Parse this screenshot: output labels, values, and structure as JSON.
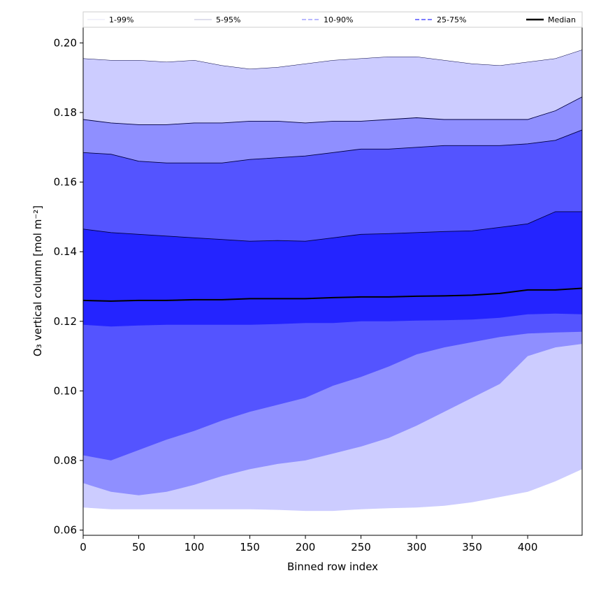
{
  "chart_data": {
    "type": "area",
    "xlabel": "Binned row index",
    "ylabel": "O₃ vertical column [mol m⁻²]",
    "xlim": [
      0,
      449
    ],
    "ylim": [
      0.0585,
      0.2045
    ],
    "x_ticks": [
      0,
      50,
      100,
      150,
      200,
      250,
      300,
      350,
      400
    ],
    "y_ticks": [
      0.06,
      0.08,
      0.1,
      0.12,
      0.14,
      0.16,
      0.18,
      0.2
    ],
    "x_tick_labels": [
      "0",
      "50",
      "100",
      "150",
      "200",
      "250",
      "300",
      "350",
      "400"
    ],
    "y_tick_labels": [
      "0.06",
      "0.08",
      "0.10",
      "0.12",
      "0.14",
      "0.16",
      "0.18",
      "0.20"
    ],
    "grid": false,
    "legend_placement": "top",
    "colors": {
      "band_1_99": "#ccccff",
      "band_5_95": "#8f8fff",
      "band_10_90": "#5454ff",
      "band_25_75": "#2424ff",
      "median": "#000000"
    },
    "x": [
      0,
      25,
      50,
      75,
      100,
      125,
      150,
      175,
      200,
      225,
      250,
      275,
      300,
      325,
      350,
      375,
      400,
      425,
      449
    ],
    "bands": [
      {
        "name": "1-99%",
        "lower": [
          0.0665,
          0.066,
          0.066,
          0.066,
          0.066,
          0.066,
          0.066,
          0.0658,
          0.0655,
          0.0655,
          0.066,
          0.0663,
          0.0665,
          0.067,
          0.068,
          0.0695,
          0.071,
          0.074,
          0.0775
        ],
        "upper": [
          0.1955,
          0.195,
          0.195,
          0.1945,
          0.195,
          0.1935,
          0.1925,
          0.193,
          0.194,
          0.195,
          0.1955,
          0.196,
          0.196,
          0.195,
          0.194,
          0.1935,
          0.1945,
          0.1955,
          0.198
        ]
      },
      {
        "name": "5-95%",
        "lower": [
          0.0735,
          0.071,
          0.07,
          0.071,
          0.073,
          0.0755,
          0.0775,
          0.079,
          0.08,
          0.082,
          0.084,
          0.0865,
          0.09,
          0.094,
          0.098,
          0.102,
          0.11,
          0.1125,
          0.1135
        ],
        "upper": [
          0.178,
          0.177,
          0.1765,
          0.1765,
          0.177,
          0.177,
          0.1775,
          0.1775,
          0.177,
          0.1775,
          0.1775,
          0.178,
          0.1785,
          0.178,
          0.178,
          0.178,
          0.178,
          0.1805,
          0.1845
        ]
      },
      {
        "name": "10-90%",
        "lower": [
          0.0815,
          0.08,
          0.083,
          0.086,
          0.0885,
          0.0915,
          0.094,
          0.096,
          0.098,
          0.1015,
          0.104,
          0.107,
          0.1105,
          0.1125,
          0.114,
          0.1155,
          0.1165,
          0.1168,
          0.117
        ],
        "upper": [
          0.1685,
          0.168,
          0.166,
          0.1655,
          0.1655,
          0.1655,
          0.1665,
          0.167,
          0.1675,
          0.1685,
          0.1695,
          0.1695,
          0.17,
          0.1705,
          0.1705,
          0.1705,
          0.171,
          0.172,
          0.175
        ]
      },
      {
        "name": "25-75%",
        "lower": [
          0.119,
          0.1185,
          0.1188,
          0.119,
          0.119,
          0.119,
          0.119,
          0.1192,
          0.1195,
          0.1195,
          0.12,
          0.12,
          0.1202,
          0.1203,
          0.1205,
          0.121,
          0.122,
          0.1222,
          0.122
        ],
        "upper": [
          0.1465,
          0.1455,
          0.145,
          0.1445,
          0.144,
          0.1435,
          0.143,
          0.1432,
          0.143,
          0.144,
          0.145,
          0.1452,
          0.1455,
          0.1458,
          0.146,
          0.147,
          0.148,
          0.1515,
          0.1515
        ]
      }
    ],
    "median": {
      "name": "Median",
      "values": [
        0.126,
        0.1258,
        0.126,
        0.126,
        0.1262,
        0.1262,
        0.1265,
        0.1265,
        0.1265,
        0.1268,
        0.127,
        0.127,
        0.1272,
        0.1273,
        0.1275,
        0.128,
        0.129,
        0.129,
        0.1295
      ]
    },
    "legend": [
      {
        "label": "1-99%",
        "style": "thin"
      },
      {
        "label": "5-95%",
        "style": "thin"
      },
      {
        "label": "10-90%",
        "style": "dashed"
      },
      {
        "label": "25-75%",
        "style": "dashed"
      },
      {
        "label": "Median",
        "style": "solid"
      }
    ]
  }
}
